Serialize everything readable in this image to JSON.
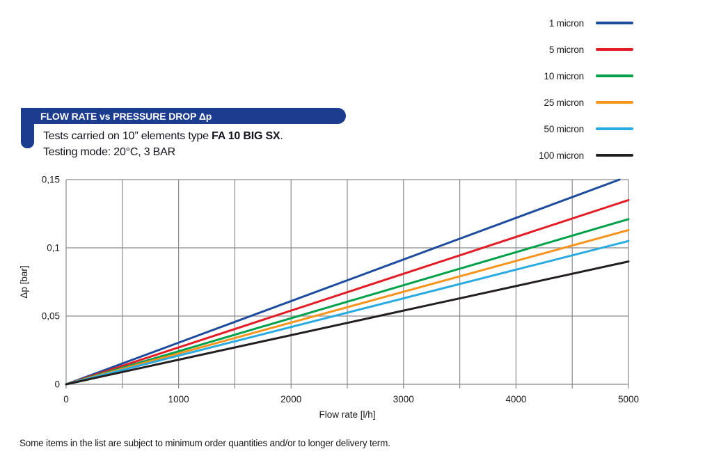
{
  "page": {
    "background": "#ffffff"
  },
  "header": {
    "banner_title": "FLOW RATE vs PRESSURE DROP Δp",
    "banner_color": "#1b3c8f",
    "subtitle_prefix": "Tests carried on 10” elements type ",
    "subtitle_bold": "FA 10 BIG SX",
    "subtitle_suffix": ".",
    "subtitle_line2": "Testing mode: 20°C, 3 BAR"
  },
  "legend": {
    "items": [
      {
        "label": "1 micron",
        "color": "#1d4b9e"
      },
      {
        "label": "5 micron",
        "color": "#e21d25"
      },
      {
        "label": "10 micron",
        "color": "#00a14b"
      },
      {
        "label": "25 micron",
        "color": "#f7941e"
      },
      {
        "label": "50 micron",
        "color": "#29abe2"
      },
      {
        "label": "100 micron",
        "color": "#231f20"
      }
    ]
  },
  "chart_data": {
    "type": "line",
    "title": "FLOW RATE vs PRESSURE DROP Δp",
    "xlabel": "Flow rate [l/h]",
    "ylabel": "Δp [bar]",
    "xlim": [
      0,
      5000
    ],
    "ylim": [
      0,
      0.15
    ],
    "x_major_ticks": [
      0,
      1000,
      2000,
      3000,
      4000,
      5000
    ],
    "x_gridline_step": 500,
    "y_tick_values": [
      0,
      0.05,
      0.1,
      0.15
    ],
    "y_tick_labels": [
      "0",
      "0,05",
      "0,1",
      "0,15"
    ],
    "grid": true,
    "grid_color": "#8a8a8a",
    "legend_position": "top-right",
    "series": [
      {
        "name": "1 micron",
        "color": "#1d4b9e",
        "points": [
          [
            0,
            0
          ],
          [
            4920,
            0.15
          ]
        ]
      },
      {
        "name": "5 micron",
        "color": "#e21d25",
        "points": [
          [
            0,
            0
          ],
          [
            5000,
            0.135
          ]
        ]
      },
      {
        "name": "10 micron",
        "color": "#00a14b",
        "points": [
          [
            0,
            0
          ],
          [
            5000,
            0.121
          ]
        ]
      },
      {
        "name": "25 micron",
        "color": "#f7941e",
        "points": [
          [
            0,
            0
          ],
          [
            5000,
            0.113
          ]
        ]
      },
      {
        "name": "50 micron",
        "color": "#29abe2",
        "points": [
          [
            0,
            0
          ],
          [
            5000,
            0.105
          ]
        ]
      },
      {
        "name": "100 micron",
        "color": "#231f20",
        "points": [
          [
            0,
            0
          ],
          [
            5000,
            0.09
          ]
        ]
      }
    ]
  },
  "footer": {
    "note": "Some items in the list are subject to minimum order quantities and/or to longer delivery term."
  }
}
